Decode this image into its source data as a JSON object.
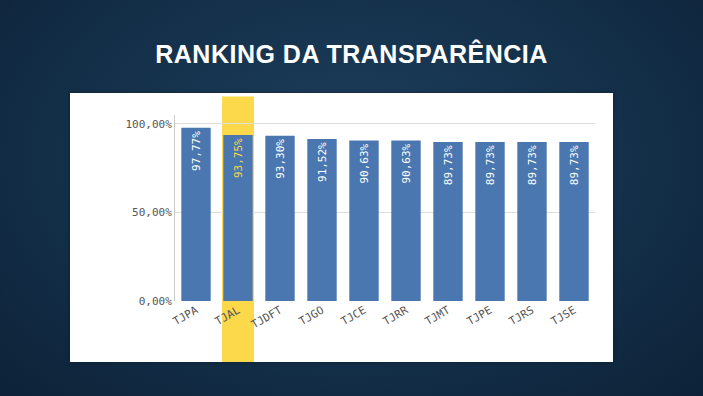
{
  "chart_data": {
    "type": "bar",
    "title": "RANKING DA TRANSPARÊNCIA",
    "categories": [
      "TJPA",
      "TJAL",
      "TJDFT",
      "TJGO",
      "TJCE",
      "TJRR",
      "TJMT",
      "TJPE",
      "TJRS",
      "TJSE"
    ],
    "values": [
      97.77,
      93.75,
      93.3,
      91.52,
      90.63,
      90.63,
      89.73,
      89.73,
      89.73,
      89.73
    ],
    "value_labels": [
      "97,77%",
      "93,75%",
      "93,30%",
      "91,52%",
      "90,63%",
      "90,63%",
      "89,73%",
      "89,73%",
      "89,73%",
      "89,73%"
    ],
    "color": "#4a77b0",
    "ylim": [
      0,
      105
    ],
    "yticks": [
      {
        "value": 0,
        "label": "0,00%"
      },
      {
        "value": 50,
        "label": "50,00%"
      },
      {
        "value": 100,
        "label": "100,00%"
      }
    ],
    "grid": true,
    "data_labels": true
  }
}
